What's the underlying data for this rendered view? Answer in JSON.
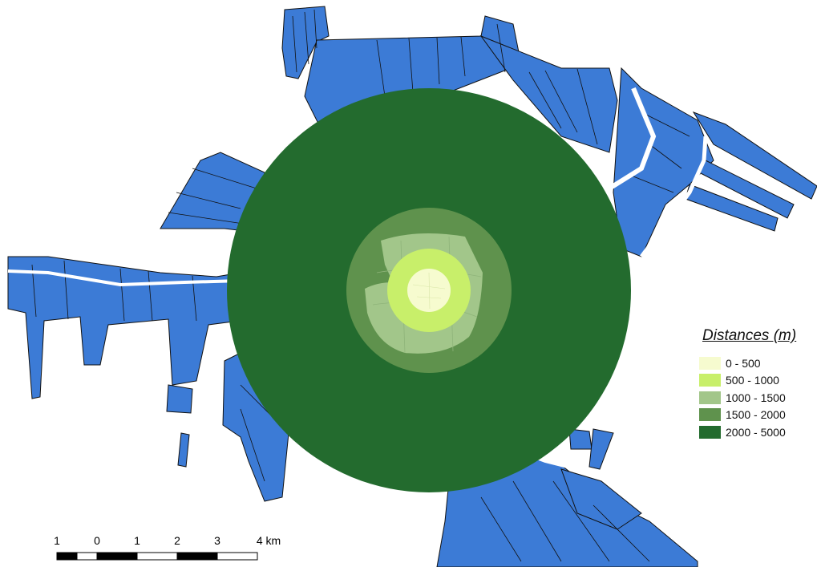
{
  "legend": {
    "title": "Distances (m)",
    "items": [
      {
        "label": "0 - 500",
        "color": "#f6fbcf"
      },
      {
        "label": "500 - 1000",
        "color": "#c8ef6a"
      },
      {
        "label": "1000 - 1500",
        "color": "#a2c68a"
      },
      {
        "label": "1500 - 2000",
        "color": "#5f924d"
      },
      {
        "label": "2000 - 5000",
        "color": "#236b2e"
      }
    ]
  },
  "scale_bar": {
    "ticks": [
      "1",
      "0",
      "1",
      "2",
      "3",
      "4 km"
    ]
  },
  "colors": {
    "parcels": "#3c7bd6",
    "parcel_outline": "#111111",
    "background": "#ffffff"
  }
}
